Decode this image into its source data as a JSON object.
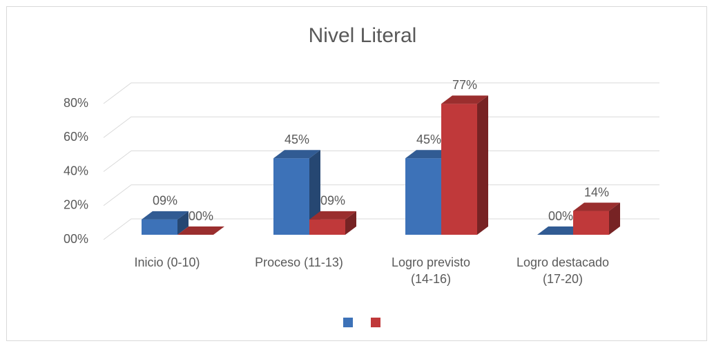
{
  "chart_data": {
    "type": "bar3d",
    "title": "Nivel Literal",
    "categories": [
      "Inicio (0-10)",
      "Proceso (11-13)",
      "Logro previsto\n(14-16)",
      "Logro destacado\n(17-20)"
    ],
    "series": [
      {
        "color": "#3d72b8",
        "values": [
          9,
          45,
          45,
          0
        ],
        "value_labels": [
          "09%",
          "45%",
          "45%",
          "00%"
        ]
      },
      {
        "color": "#c0393a",
        "values": [
          0,
          9,
          77,
          14
        ],
        "value_labels": [
          "00%",
          "09%",
          "77%",
          "14%"
        ]
      }
    ],
    "ylim": [
      0,
      80
    ],
    "yticks": [
      {
        "value": 0,
        "label": "00%"
      },
      {
        "value": 20,
        "label": "20%"
      },
      {
        "value": 40,
        "label": "40%"
      },
      {
        "value": 60,
        "label": "60%"
      },
      {
        "value": 80,
        "label": "80%"
      }
    ],
    "grid": true
  }
}
